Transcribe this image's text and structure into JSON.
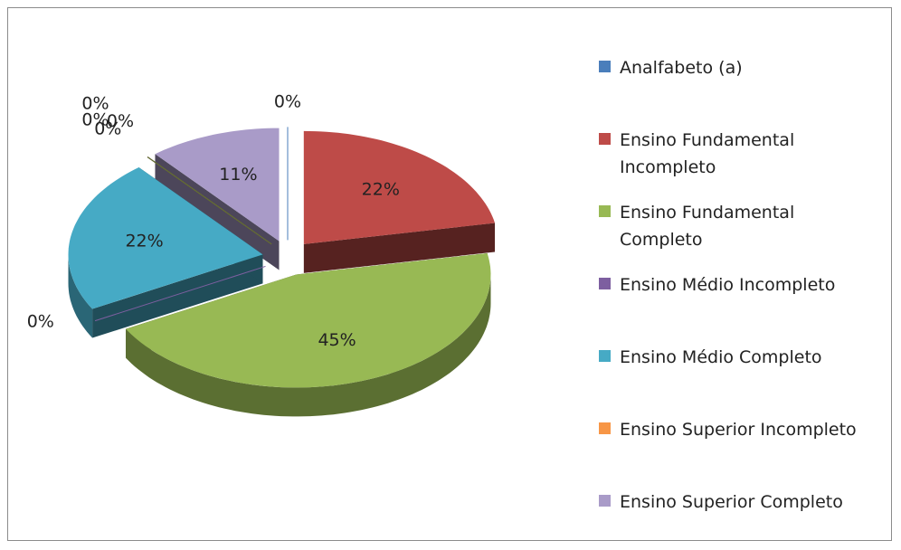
{
  "chart_data": {
    "type": "pie",
    "categories": [
      "Analfabeto (a)",
      "Ensino Fundamental Incompleto",
      "Ensino Fundamental Completo",
      "Ensino Médio Incompleto",
      "Ensino Médio Completo",
      "Ensino Superior Incompleto",
      null,
      null,
      null,
      "Ensino Superior Completo"
    ],
    "values": [
      0,
      22,
      45,
      0,
      22,
      0,
      0,
      0,
      0,
      11
    ],
    "value_labels": [
      "0%",
      "22%",
      "45%",
      "0%",
      "22%",
      "0%",
      "0%",
      "0%",
      "0%",
      "11%"
    ],
    "colors": [
      "#4a7ebb",
      "#be4b48",
      "#98b954",
      "#7d5fa0",
      "#46aac5",
      "#f79646",
      "#2c4d75",
      "#772c2a",
      "#5f7530",
      "#a99bc8"
    ],
    "legend": "right"
  }
}
